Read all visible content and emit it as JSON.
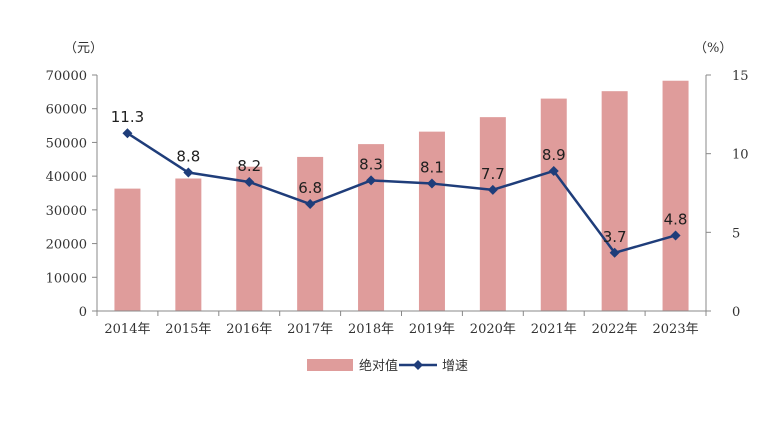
{
  "chart_data": {
    "type": "bar",
    "categories": [
      "2014年",
      "2015年",
      "2016年",
      "2017年",
      "2018年",
      "2019年",
      "2020年",
      "2021年",
      "2022年",
      "2023年"
    ],
    "series": [
      {
        "name": "绝对值",
        "type": "bar",
        "axis": "left",
        "color": "#df9c9b",
        "values": [
          36300,
          39300,
          42800,
          45700,
          49500,
          53200,
          57500,
          63000,
          65200,
          68300
        ]
      },
      {
        "name": "增速",
        "type": "line",
        "axis": "right",
        "color": "#1f3d7a",
        "marker": "diamond",
        "values": [
          11.3,
          8.8,
          8.2,
          6.8,
          8.3,
          8.1,
          7.7,
          8.9,
          3.7,
          4.8
        ],
        "labels": [
          "11.3",
          "8.8",
          "8.2",
          "6.8",
          "8.3",
          "8.1",
          "7.7",
          "8.9",
          "3.7",
          "4.8"
        ]
      }
    ],
    "y_left": {
      "unit": "（元）",
      "ylim": [
        0,
        70000
      ],
      "ticks": [
        "0",
        "10000",
        "20000",
        "30000",
        "40000",
        "50000",
        "60000",
        "70000"
      ]
    },
    "y_right": {
      "unit": "（%）",
      "ylim": [
        0,
        15
      ],
      "ticks": [
        "0",
        "5",
        "10",
        "15"
      ]
    },
    "grid": false,
    "legend_position": "bottom-center"
  }
}
